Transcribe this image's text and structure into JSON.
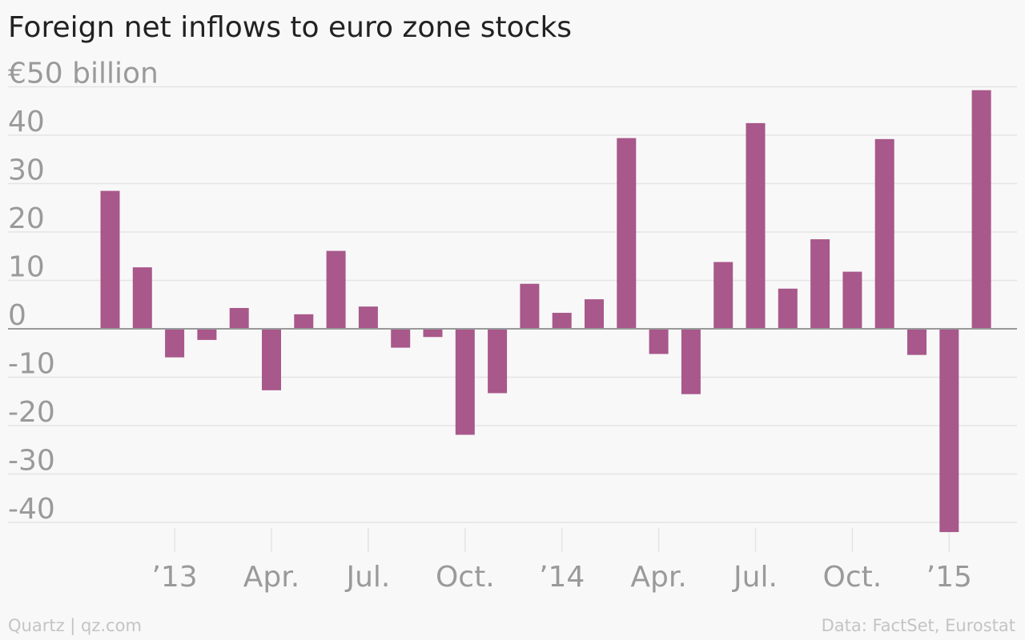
{
  "chart_data": {
    "type": "bar",
    "title": "Foreign net inflows to euro zone stocks",
    "ylabel": "",
    "xlabel": "",
    "unit_prefix": "€",
    "unit_suffix": " billion",
    "ylim": [
      -45,
      50
    ],
    "yticks": [
      50,
      40,
      30,
      20,
      10,
      0,
      -10,
      -20,
      -30,
      -40
    ],
    "ytick_labels": [
      "€50 billion",
      "40",
      "30",
      "20",
      "10",
      "0",
      "-10",
      "-20",
      "-30",
      "-40"
    ],
    "xtick_labels": [
      {
        "label": "’13",
        "month": "2013-01"
      },
      {
        "label": "Apr.",
        "month": "2013-04"
      },
      {
        "label": "Jul.",
        "month": "2013-07"
      },
      {
        "label": "Oct.",
        "month": "2013-10"
      },
      {
        "label": "’14",
        "month": "2014-01"
      },
      {
        "label": "Apr.",
        "month": "2014-04"
      },
      {
        "label": "Jul.",
        "month": "2014-07"
      },
      {
        "label": "Oct.",
        "month": "2014-10"
      },
      {
        "label": "’15",
        "month": "2015-01"
      }
    ],
    "categories": [
      "2012-11",
      "2012-12",
      "2013-01",
      "2013-02",
      "2013-03",
      "2013-04",
      "2013-05",
      "2013-06",
      "2013-07",
      "2013-08",
      "2013-09",
      "2013-10",
      "2013-11",
      "2013-12",
      "2014-01",
      "2014-02",
      "2014-03",
      "2014-04",
      "2014-05",
      "2014-06",
      "2014-07",
      "2014-08",
      "2014-09",
      "2014-10",
      "2014-11",
      "2014-12",
      "2015-01",
      "2015-02"
    ],
    "values": [
      28.5,
      12.7,
      -5.9,
      -2.3,
      4.3,
      -12.7,
      3.0,
      16.1,
      4.6,
      -3.9,
      -1.7,
      -21.9,
      -13.3,
      9.3,
      3.3,
      6.1,
      39.4,
      -5.2,
      -13.5,
      13.8,
      42.5,
      8.3,
      18.5,
      11.8,
      39.2,
      -5.4,
      -42.0,
      49.3
    ],
    "grid": true,
    "legend": "none",
    "colors": {
      "bar": "#a8588a",
      "grid": "#e4e4e4",
      "zero": "#999999",
      "tick": "#9a9a9a"
    }
  },
  "footer": {
    "source_left": "Quartz | qz.com",
    "source_right": "Data: FactSet, Eurostat"
  }
}
